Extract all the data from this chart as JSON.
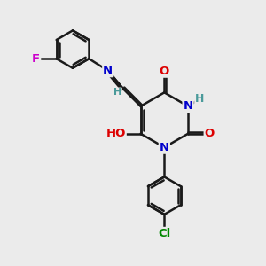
{
  "bg_color": "#ebebeb",
  "bond_color": "#1a1a1a",
  "bond_width": 1.8,
  "dbo": 0.07,
  "atom_colors": {
    "N": "#0000cc",
    "O": "#dd0000",
    "F": "#cc00cc",
    "Cl": "#008800",
    "C": "#1a1a1a",
    "H": "#4a9a9a"
  },
  "font_size": 9.5,
  "figsize": [
    3.0,
    3.0
  ],
  "dpi": 100
}
